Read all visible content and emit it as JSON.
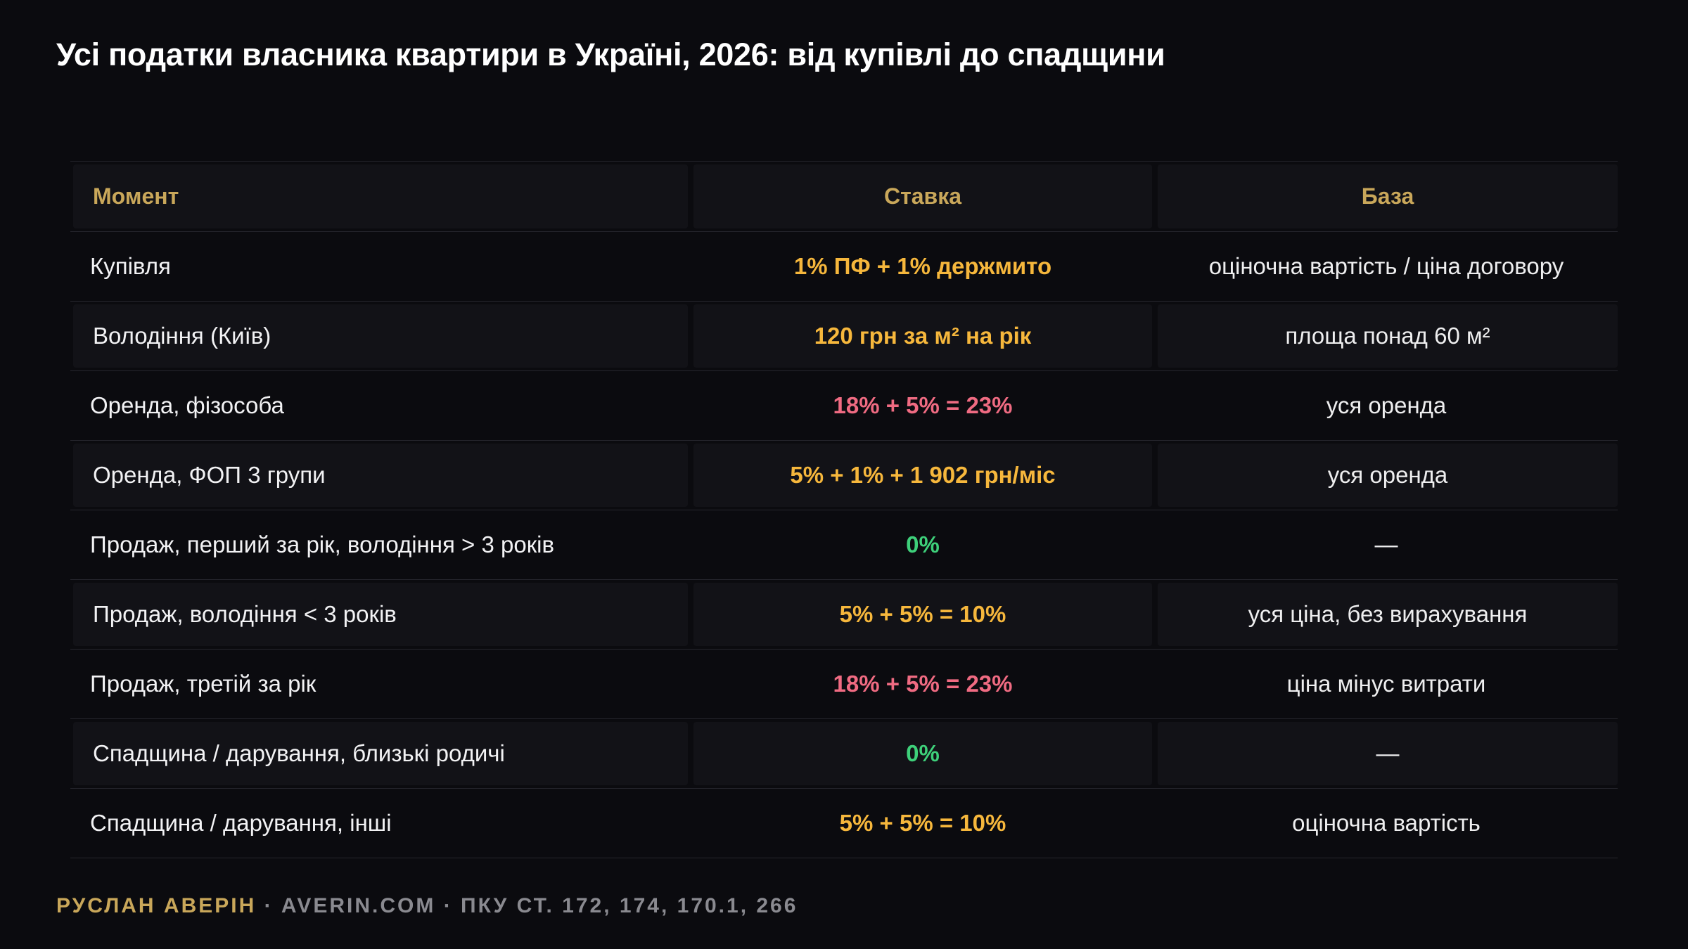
{
  "title": "Усі податки власника квартири в Україні, 2026: від купівлі до спадщини",
  "colors": {
    "background": "#0b0b0f",
    "header_text": "#c9a75a",
    "rate_orange": "#f6b73c",
    "rate_red": "#f06b82",
    "rate_green": "#3ed07a"
  },
  "table": {
    "headers": [
      "Момент",
      "Ставка",
      "База"
    ],
    "rows": [
      {
        "moment": "Купівля",
        "rate": "1% ПФ + 1% держмито",
        "rate_color": "orange",
        "base": "оціночна вартість / ціна договору"
      },
      {
        "moment": "Володіння (Київ)",
        "rate": "120 грн за м² на рік",
        "rate_color": "orange",
        "base": "площа понад 60 м²"
      },
      {
        "moment": "Оренда, фізособа",
        "rate": "18% + 5% = 23%",
        "rate_color": "red",
        "base": "уся оренда"
      },
      {
        "moment": "Оренда, ФОП 3 групи",
        "rate": "5% + 1% + 1 902 грн/міс",
        "rate_color": "orange",
        "base": "уся оренда"
      },
      {
        "moment": "Продаж, перший за рік, володіння > 3 років",
        "rate": "0%",
        "rate_color": "green",
        "base": "—"
      },
      {
        "moment": "Продаж, володіння < 3 років",
        "rate": "5% + 5% = 10%",
        "rate_color": "orange",
        "base": "уся ціна, без вирахування"
      },
      {
        "moment": "Продаж, третій за рік",
        "rate": "18% + 5% = 23%",
        "rate_color": "red",
        "base": "ціна мінус витрати"
      },
      {
        "moment": "Спадщина / дарування, близькі родичі",
        "rate": "0%",
        "rate_color": "green",
        "base": "—"
      },
      {
        "moment": "Спадщина / дарування, інші",
        "rate": "5% + 5% = 10%",
        "rate_color": "orange",
        "base": "оціночна вартість"
      }
    ]
  },
  "footer": {
    "author": "РУСЛАН АВЕРІН",
    "rest": " · AVERIN.COM · ПКУ СТ. 172, 174, 170.1, 266"
  }
}
